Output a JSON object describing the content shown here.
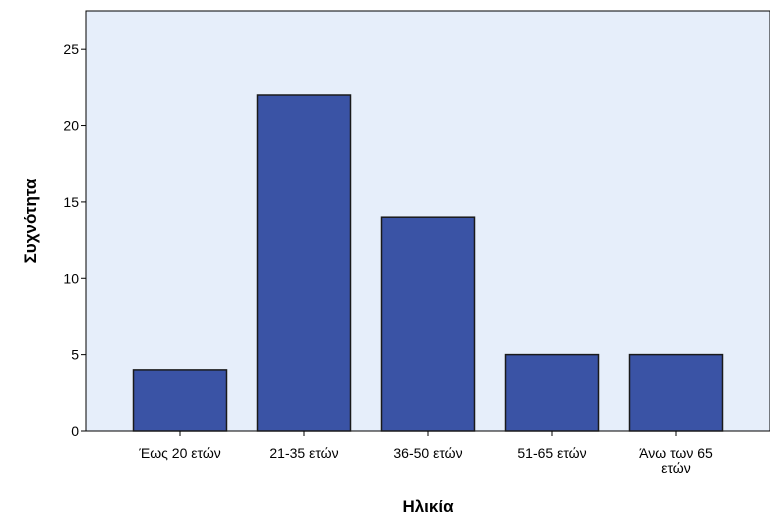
{
  "chart_data": {
    "type": "bar",
    "categories": [
      [
        "Έως 20 ετών"
      ],
      [
        "21-35 ετών"
      ],
      [
        "36-50 ετών"
      ],
      [
        "51-65 ετών"
      ],
      [
        "Άνω των 65",
        "ετών"
      ]
    ],
    "values": [
      4,
      22,
      14,
      5,
      5
    ],
    "xlabel": "Ηλικία",
    "ylabel": "Συχνότητα",
    "ylim": [
      0,
      27.5
    ],
    "yticks": [
      0,
      5,
      10,
      15,
      20,
      25
    ],
    "grid": false,
    "legend": "none",
    "colors": {
      "plot_background": "#e6eefa",
      "bar_fill": "#3a53a5",
      "bar_stroke": "#1a1a1a",
      "axis": "#000000"
    }
  }
}
